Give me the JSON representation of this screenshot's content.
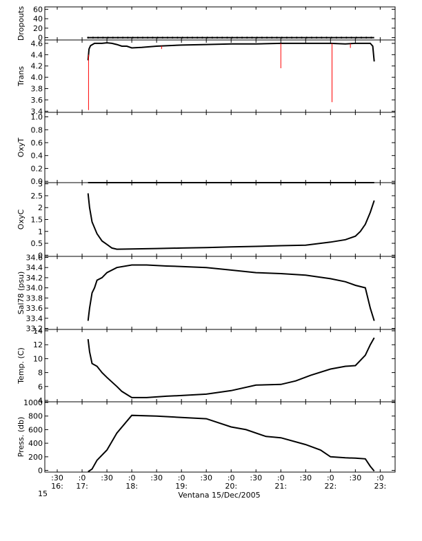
{
  "chart_data": [
    {
      "type": "line",
      "ylabel": "Dropouts",
      "ylim": [
        -5,
        65
      ],
      "yticks": [
        0,
        20,
        40,
        60
      ],
      "series": [
        {
          "color": "#000000",
          "x": [
            17.12,
            22.88
          ],
          "y": [
            0,
            0
          ],
          "markers": true
        }
      ]
    },
    {
      "type": "line",
      "ylabel": "Trans",
      "ylim": [
        3.38,
        4.66
      ],
      "yticks": [
        3.4,
        3.6,
        3.8,
        4.0,
        4.2,
        4.4,
        4.6
      ],
      "series": [
        {
          "color": "#000000",
          "x": [
            17.12,
            17.14,
            17.17,
            17.25,
            17.4,
            17.5,
            17.6,
            17.7,
            17.8,
            17.9,
            18.0,
            18.2,
            18.5,
            19.0,
            19.5,
            20.0,
            20.5,
            21.0,
            21.5,
            22.0,
            22.3,
            22.5,
            22.6,
            22.7,
            22.8,
            22.85,
            22.88
          ],
          "y": [
            4.3,
            4.5,
            4.56,
            4.6,
            4.6,
            4.61,
            4.6,
            4.58,
            4.55,
            4.55,
            4.52,
            4.53,
            4.55,
            4.57,
            4.58,
            4.59,
            4.59,
            4.6,
            4.6,
            4.6,
            4.59,
            4.6,
            4.6,
            4.6,
            4.6,
            4.55,
            4.28
          ]
        },
        {
          "color": "#ff0000",
          "spikes": [
            [
              17.13,
              3.42
            ],
            [
              21.0,
              4.16
            ],
            [
              22.03,
              3.56
            ],
            [
              18.6,
              4.5
            ],
            [
              22.4,
              4.52
            ]
          ]
        }
      ]
    },
    {
      "type": "line",
      "ylabel": "OxyT",
      "ylim": [
        -0.02,
        1.07
      ],
      "yticks": [
        0.0,
        0.2,
        0.4,
        0.6,
        0.8,
        1.0
      ],
      "series": [
        {
          "color": "#000000",
          "x": [
            17.12,
            22.88
          ],
          "y": [
            -0.02,
            -0.02
          ]
        }
      ]
    },
    {
      "type": "line",
      "ylabel": "OxyC",
      "ylim": [
        -0.05,
        3.05
      ],
      "yticks": [
        0.0,
        0.5,
        1.0,
        1.5,
        2.0,
        2.5,
        3.0
      ],
      "series": [
        {
          "color": "#000000",
          "x": [
            17.12,
            17.15,
            17.2,
            17.3,
            17.4,
            17.5,
            17.6,
            17.7,
            18.0,
            18.5,
            19.0,
            19.5,
            20.0,
            20.5,
            21.0,
            21.5,
            22.0,
            22.3,
            22.5,
            22.6,
            22.7,
            22.8,
            22.88
          ],
          "y": [
            2.6,
            2.0,
            1.4,
            0.9,
            0.6,
            0.45,
            0.3,
            0.25,
            0.26,
            0.28,
            0.3,
            0.32,
            0.35,
            0.37,
            0.4,
            0.42,
            0.55,
            0.65,
            0.8,
            1.0,
            1.3,
            1.8,
            2.3
          ]
        }
      ]
    },
    {
      "type": "line",
      "ylabel": "Sal78 (psu)",
      "ylim": [
        33.18,
        34.62
      ],
      "yticks": [
        33.2,
        33.4,
        33.6,
        33.8,
        34.0,
        34.2,
        34.4,
        34.6
      ],
      "series": [
        {
          "color": "#000000",
          "x": [
            17.12,
            17.15,
            17.2,
            17.25,
            17.3,
            17.4,
            17.5,
            17.7,
            18.0,
            18.3,
            18.7,
            19.0,
            19.5,
            20.0,
            20.5,
            21.0,
            21.5,
            22.0,
            22.3,
            22.5,
            22.7,
            22.8,
            22.88
          ],
          "y": [
            33.35,
            33.6,
            33.9,
            34.0,
            34.15,
            34.2,
            34.3,
            34.4,
            34.45,
            34.45,
            34.43,
            34.42,
            34.4,
            34.35,
            34.3,
            34.28,
            34.25,
            34.18,
            34.12,
            34.05,
            34.0,
            33.6,
            33.35
          ]
        }
      ]
    },
    {
      "type": "line",
      "ylabel": "Temp. (C)",
      "ylim": [
        3.8,
        14.2
      ],
      "yticks": [
        4,
        6,
        8,
        10,
        12,
        14
      ],
      "series": [
        {
          "color": "#000000",
          "x": [
            17.12,
            17.15,
            17.2,
            17.3,
            17.4,
            17.5,
            17.7,
            17.8,
            18.0,
            18.3,
            18.7,
            19.0,
            19.5,
            20.0,
            20.5,
            21.0,
            21.3,
            21.6,
            22.0,
            22.3,
            22.5,
            22.7,
            22.8,
            22.88
          ],
          "y": [
            12.8,
            11.0,
            9.3,
            8.9,
            8.0,
            7.3,
            6.0,
            5.3,
            4.4,
            4.4,
            4.6,
            4.7,
            4.9,
            5.4,
            6.2,
            6.3,
            6.8,
            7.6,
            8.5,
            8.9,
            9.0,
            10.5,
            12.0,
            13.0
          ]
        }
      ]
    },
    {
      "type": "line",
      "ylabel": "Press. (db)",
      "ylim": [
        -25,
        1010
      ],
      "yticks": [
        0,
        200,
        400,
        600,
        800,
        1000
      ],
      "series": [
        {
          "color": "#000000",
          "x": [
            17.12,
            17.2,
            17.3,
            17.5,
            17.7,
            18.0,
            18.5,
            19.0,
            19.5,
            20.0,
            20.3,
            20.7,
            21.0,
            21.5,
            21.8,
            22.0,
            22.3,
            22.5,
            22.7,
            22.8,
            22.88
          ],
          "y": [
            -20,
            20,
            150,
            300,
            550,
            810,
            800,
            780,
            760,
            640,
            600,
            500,
            480,
            380,
            300,
            200,
            185,
            180,
            170,
            60,
            -10
          ]
        }
      ]
    }
  ],
  "x_axis": {
    "xlim": [
      16.25,
      23.3
    ],
    "ticks": [
      {
        "x": 16.5,
        "label": ":30",
        "sub": "16:"
      },
      {
        "x": 17.0,
        "label": ":0",
        "sub": "17:"
      },
      {
        "x": 17.5,
        "label": ":30",
        "sub": ""
      },
      {
        "x": 18.0,
        "label": ":0",
        "sub": "18:"
      },
      {
        "x": 18.5,
        "label": ":30",
        "sub": ""
      },
      {
        "x": 19.0,
        "label": ":0",
        "sub": "19:"
      },
      {
        "x": 19.5,
        "label": ":30",
        "sub": ""
      },
      {
        "x": 20.0,
        "label": ":0",
        "sub": "20:"
      },
      {
        "x": 20.5,
        "label": ":30",
        "sub": ""
      },
      {
        "x": 21.0,
        "label": ":0",
        "sub": "21:"
      },
      {
        "x": 21.5,
        "label": ":30",
        "sub": ""
      },
      {
        "x": 22.0,
        "label": ":0",
        "sub": "22:"
      },
      {
        "x": 22.5,
        "label": ":30",
        "sub": ""
      },
      {
        "x": 23.0,
        "label": ":0",
        "sub": "23:"
      }
    ],
    "extra_label": "15",
    "xlabel": "Ventana 15/Dec/2005"
  }
}
